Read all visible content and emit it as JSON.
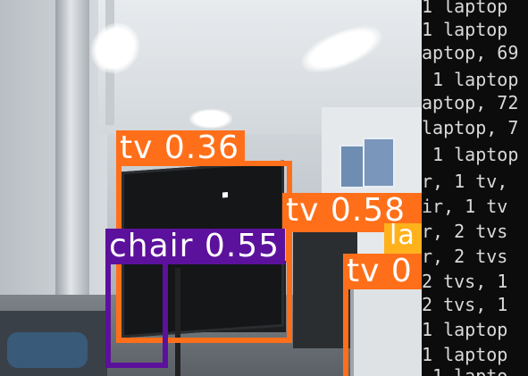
{
  "detections": [
    {
      "label": "tv 0.36",
      "color": "#ff6f1a"
    },
    {
      "label": "tv 0.58",
      "color": "#ff6f1a"
    },
    {
      "label": "chair 0.55",
      "color": "#5c119c"
    },
    {
      "label": "tv 0",
      "color": "#ff6f1a"
    },
    {
      "label": "la",
      "color": "#ffb21c"
    }
  ],
  "terminal": {
    "lines": [
      "1 laptop",
      "1 laptop",
      "aptop, 69",
      " 1 laptop",
      "aptop, 72",
      "laptop, 7",
      " 1 laptop",
      "r, 1 tv, ",
      "ir, 1 tv",
      "r, 2 tvs",
      "r, 2 tvs",
      "2 tvs, 1",
      "2 tvs, 1",
      "1 laptop",
      "1 laptop",
      " 1 lapto"
    ]
  }
}
